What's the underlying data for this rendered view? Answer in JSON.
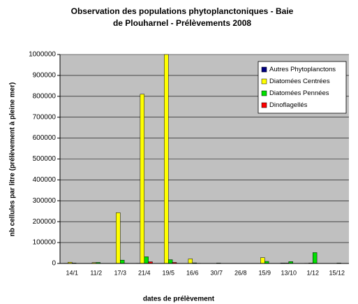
{
  "chart_data": {
    "type": "bar",
    "title": "Observation des populations phytoplanctoniques - Baie de Plouharnel - Prélèvements 2008",
    "x_label": "dates de prélèvement",
    "y_label": "nb cellules par litre (prélèvement à pleine mer)",
    "categories": [
      "14/1",
      "11/2",
      "17/3",
      "21/4",
      "19/5",
      "16/6",
      "30/7",
      "26/8",
      "15/9",
      "13/10",
      "1/12",
      "15/12"
    ],
    "series": [
      {
        "name": "Autres Phytoplanctons",
        "color": "#000080",
        "values": [
          1000,
          500,
          0,
          1000,
          1000,
          0,
          0,
          0,
          0,
          2000,
          1000,
          0
        ]
      },
      {
        "name": "Diatomées Centrées",
        "color": "#ffff00",
        "values": [
          6000,
          4000,
          243000,
          810000,
          1000000,
          22000,
          0,
          0,
          28000,
          2000,
          2000,
          0
        ]
      },
      {
        "name": "Diatomées Pennées",
        "color": "#00e000",
        "values": [
          2000,
          5000,
          16000,
          32000,
          18000,
          3000,
          2000,
          0,
          10000,
          9000,
          52000,
          2000
        ]
      },
      {
        "name": "Dinoflagellés",
        "color": "#ff0000",
        "values": [
          500,
          500,
          1000,
          8000,
          5000,
          1000,
          0,
          0,
          0,
          0,
          0,
          0
        ]
      }
    ],
    "ylim": [
      0,
      1000000
    ],
    "yticks": [
      0,
      100000,
      200000,
      300000,
      400000,
      500000,
      600000,
      700000,
      800000,
      900000,
      1000000
    ],
    "grid": true,
    "legend": "top-right"
  }
}
